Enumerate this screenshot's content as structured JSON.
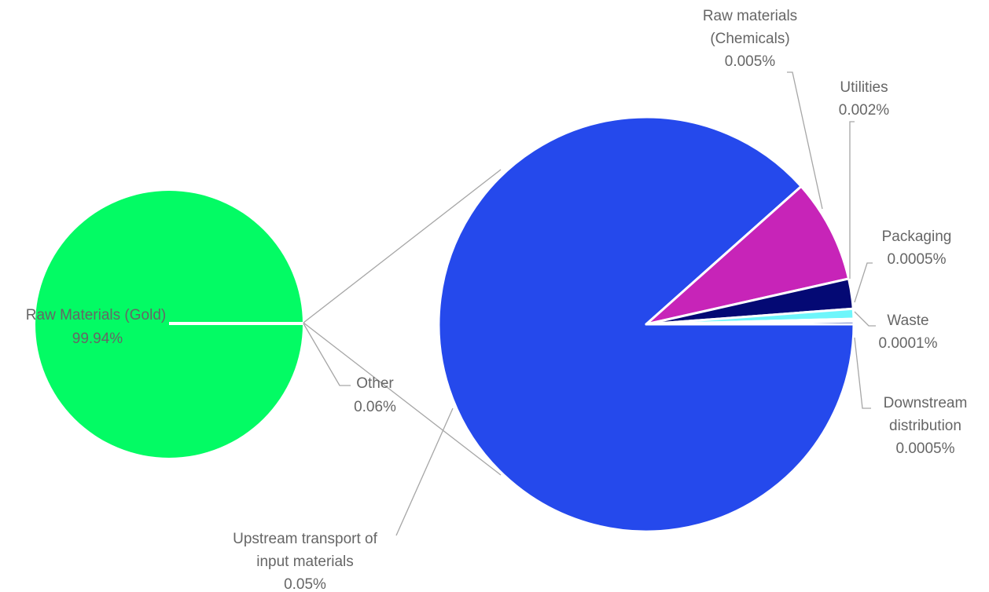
{
  "chart_data": {
    "type": "pie",
    "title": "",
    "primary": {
      "slices": [
        {
          "label": "Raw Materials (Gold)",
          "value_label": "99.94%",
          "value": 99.94,
          "color": "#03fb64"
        },
        {
          "label": "Other",
          "value_label": "0.06%",
          "value": 0.06,
          "color": "#ffffff"
        }
      ]
    },
    "secondary": {
      "of": "Other",
      "slices": [
        {
          "label": "Upstream transport of input materials",
          "value_label": "0.05%",
          "value": 0.05,
          "color": "#2549ec"
        },
        {
          "label": "Raw materials (Chemicals)",
          "value_label": "0.005%",
          "value": 0.005,
          "color": "#c724b8"
        },
        {
          "label": "Utilities",
          "value_label": "0.002%",
          "value": 0.002,
          "color": "#040974"
        },
        {
          "label": "Packaging",
          "value_label": "0.0005%",
          "value": 0.0005,
          "color": "#6ef6fb"
        },
        {
          "label": "Waste",
          "value_label": "0.0001%",
          "value": 0.0001,
          "color": "#ffffff"
        },
        {
          "label": "Downstream distribution",
          "value_label": "0.0005%",
          "value": 0.0005,
          "color": "#1d3aa8"
        }
      ]
    },
    "legend": "none"
  }
}
